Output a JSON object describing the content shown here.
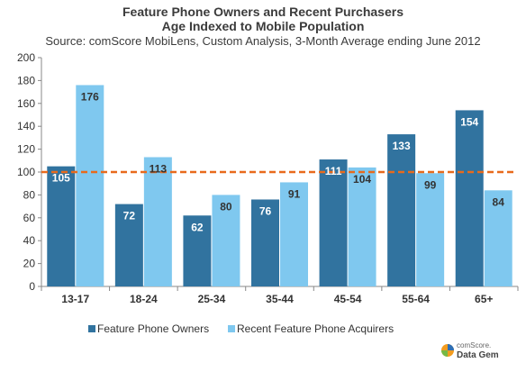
{
  "chart_data": {
    "type": "bar",
    "title_lines": [
      "Feature Phone Owners and Recent Purchasers",
      "Age Indexed to Mobile Population"
    ],
    "subtitle": "Source: comScore MobiLens, Custom Analysis, 3-Month Average ending June 2012",
    "categories": [
      "13-17",
      "18-24",
      "25-34",
      "35-44",
      "45-54",
      "55-64",
      "65+"
    ],
    "series": [
      {
        "name": "Feature Phone Owners",
        "values": [
          105,
          72,
          62,
          76,
          111,
          133,
          154
        ],
        "color": "#31739f"
      },
      {
        "name": "Recent Feature Phone Acquirers",
        "values": [
          176,
          113,
          80,
          91,
          104,
          99,
          84
        ],
        "color": "#7fc8ef"
      }
    ],
    "ylim": [
      0,
      200
    ],
    "yticks": [
      0,
      20,
      40,
      60,
      80,
      100,
      120,
      140,
      160,
      180,
      200
    ],
    "reference_line": {
      "value": 100,
      "color": "#e86a1c",
      "style": "dashed"
    },
    "grid": false,
    "legend_position": "bottom"
  },
  "branding": {
    "line1": "comScore.",
    "line2": "Data Gem"
  }
}
